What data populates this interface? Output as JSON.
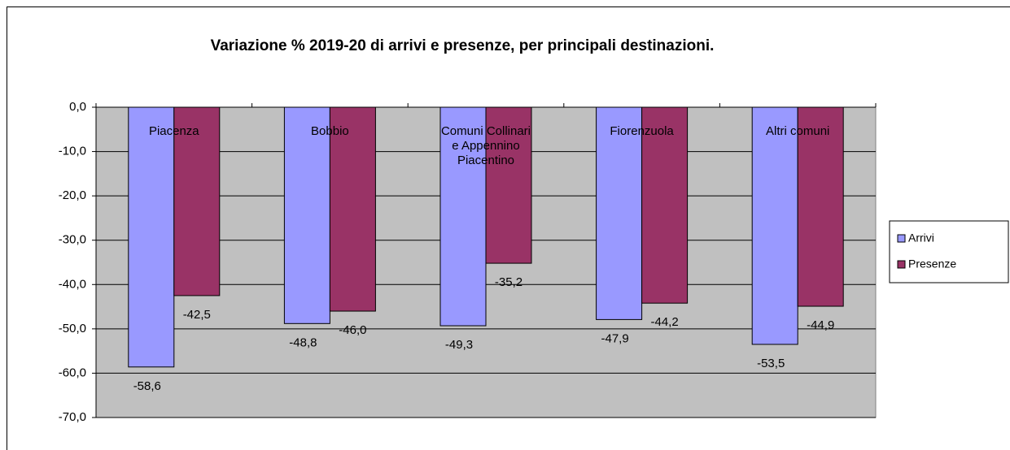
{
  "chart_data": {
    "type": "bar",
    "title": "Variazione % 2019-20 di arrivi e presenze, per principali destinazioni.",
    "categories": [
      "Piacenza",
      "Bobbio",
      "Comuni Collinari e Appennino Piacentino",
      "Fiorenzuola",
      "Altri comuni"
    ],
    "series": [
      {
        "name": "Arrivi",
        "color": "#9999ff",
        "values": [
          -58.6,
          -48.8,
          -49.3,
          -47.9,
          -53.5
        ],
        "value_labels": [
          "-58,6",
          "-48,8",
          "-49,3",
          "-47,9",
          "-53,5"
        ]
      },
      {
        "name": "Presenze",
        "color": "#993366",
        "values": [
          -42.5,
          -46.0,
          -35.2,
          -44.2,
          -44.9
        ],
        "value_labels": [
          "-42,5",
          "-46,0",
          "-35,2",
          "-44,2",
          "-44,9"
        ]
      }
    ],
    "ylim": [
      -70,
      0
    ],
    "yticks": [
      {
        "value": 0,
        "label": "0,0"
      },
      {
        "value": -10,
        "label": "-10,0"
      },
      {
        "value": -20,
        "label": "-20,0"
      },
      {
        "value": -30,
        "label": "-30,0"
      },
      {
        "value": -40,
        "label": "-40,0"
      },
      {
        "value": -50,
        "label": "-50,0"
      },
      {
        "value": -60,
        "label": "-60,0"
      },
      {
        "value": -70,
        "label": "-70,0"
      }
    ],
    "grid": true,
    "legend": "right",
    "plot_background": "#c0c0c0"
  }
}
